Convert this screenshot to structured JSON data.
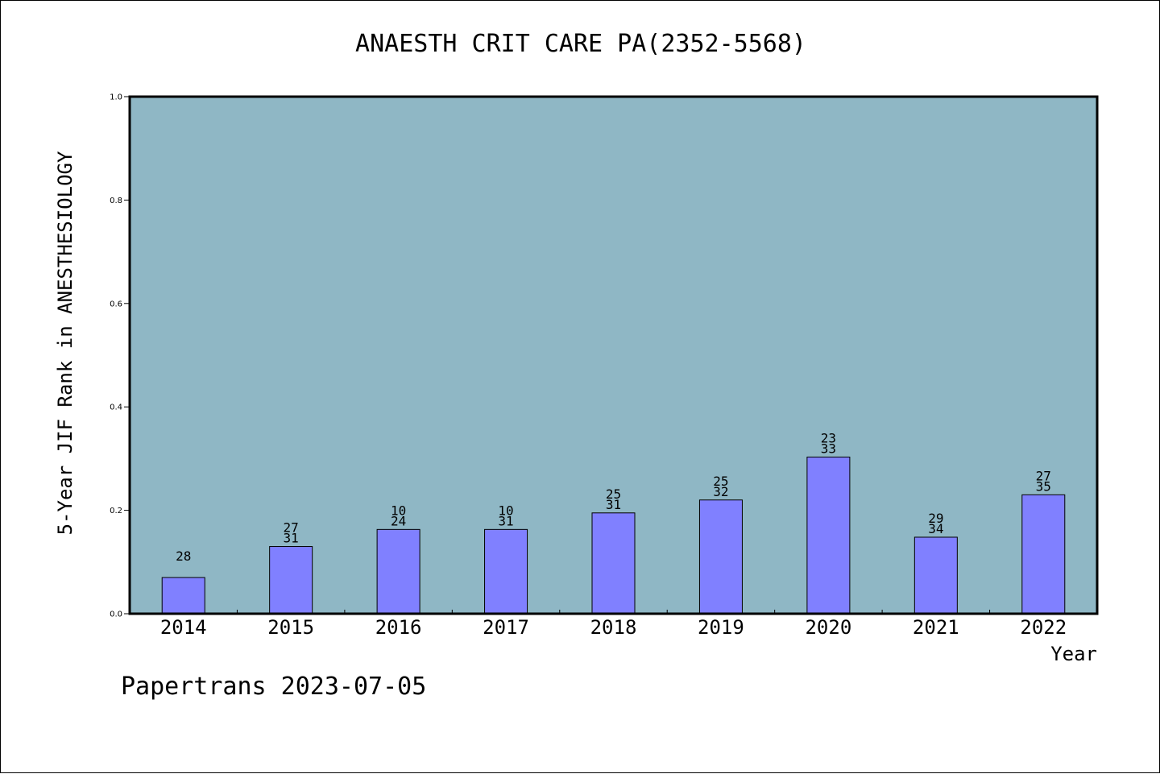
{
  "chart": {
    "title": "ANAESTH CRIT CARE PA(2352-5568)",
    "footer": "Papertrans 2023-07-05"
  },
  "colors": {
    "plot_background": "#8fb7c5",
    "bar_fill": "#8080ff",
    "bar_stroke": "#000000"
  },
  "chart_data": {
    "type": "bar",
    "title": "ANAESTH CRIT CARE PA(2352-5568)",
    "xlabel": "Year",
    "ylabel": "5-Year JIF Rank in ANESTHESIOLOGY",
    "ylim": [
      0,
      1.0
    ],
    "yticks": [
      "0.0",
      "0.2",
      "0.4",
      "0.6",
      "0.8",
      "1.0"
    ],
    "categories": [
      "2014",
      "2015",
      "2016",
      "2017",
      "2018",
      "2019",
      "2020",
      "2021",
      "2022"
    ],
    "values": [
      0.07,
      0.13,
      0.163,
      0.163,
      0.195,
      0.22,
      0.303,
      0.148,
      0.23
    ],
    "annotations": [
      [
        "28"
      ],
      [
        "27",
        "31"
      ],
      [
        "10",
        "24"
      ],
      [
        "10",
        "31"
      ],
      [
        "25",
        "31"
      ],
      [
        "25",
        "32"
      ],
      [
        "23",
        "33"
      ],
      [
        "29",
        "34"
      ],
      [
        "27",
        "35"
      ]
    ],
    "grid": false,
    "legend": "none"
  }
}
